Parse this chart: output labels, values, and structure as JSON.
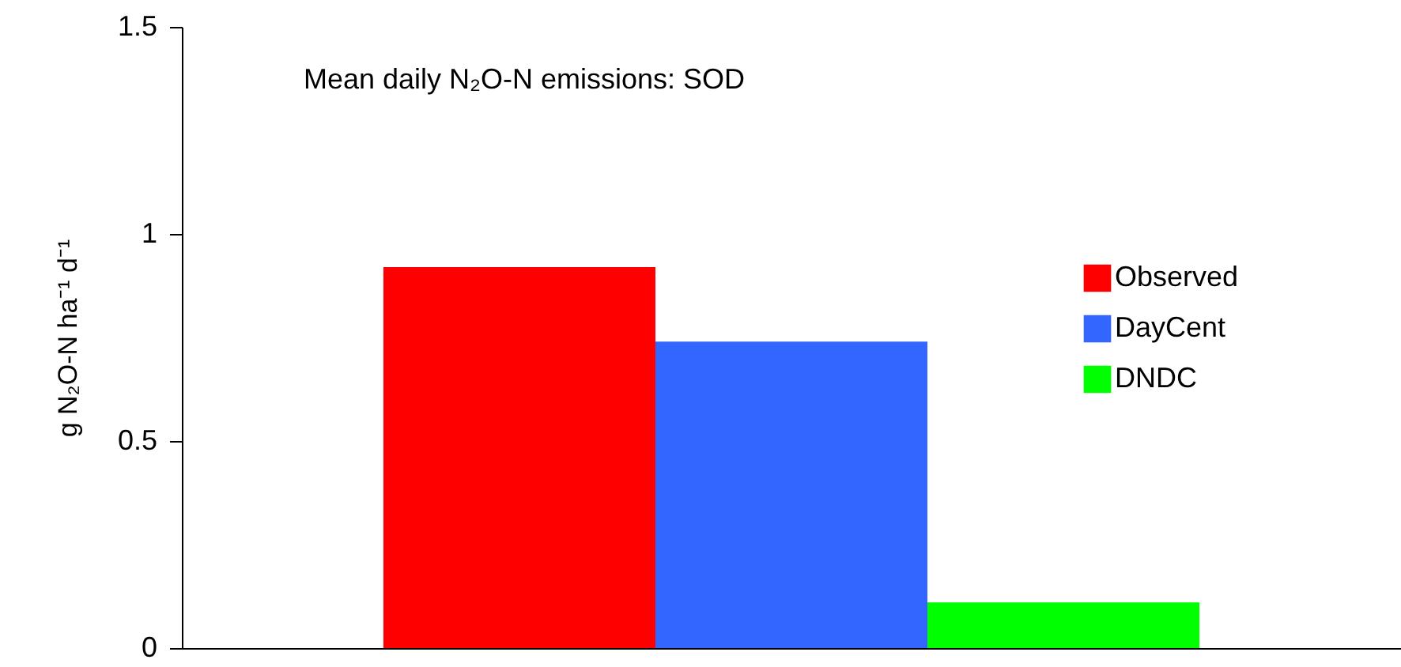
{
  "chart_data": {
    "type": "bar",
    "title": "Mean daily N₂O-N emissions: SOD",
    "ylabel": "g N₂O-N ha⁻¹ d⁻¹",
    "categories": [
      null
    ],
    "series": [
      {
        "name": "Observed",
        "color": "#ff0000",
        "values": [
          0.92
        ]
      },
      {
        "name": "DayCent",
        "color": "#3366ff",
        "values": [
          0.74
        ]
      },
      {
        "name": "DNDC",
        "color": "#00ff00",
        "values": [
          0.11
        ]
      }
    ],
    "ylim": [
      0,
      1.5
    ],
    "yticks": [
      0,
      0.5,
      1,
      1.5
    ],
    "grid": false,
    "legend": "right"
  }
}
